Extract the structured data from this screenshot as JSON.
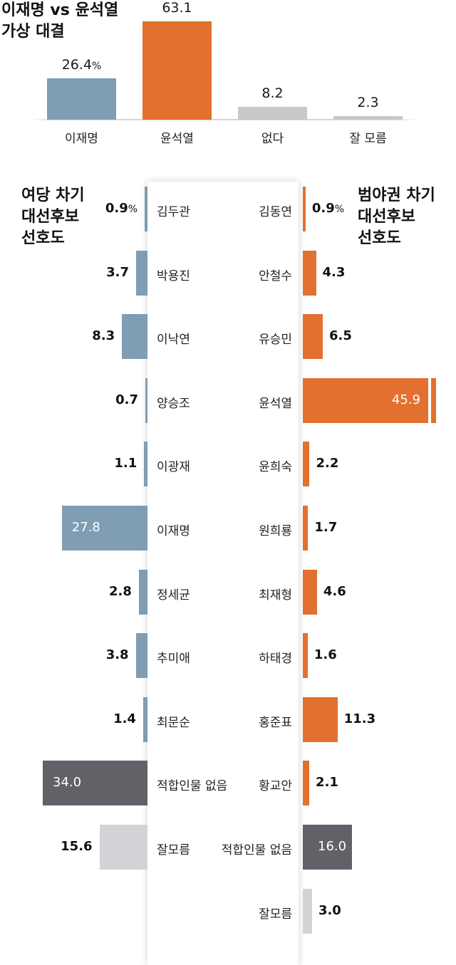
{
  "chart_data": [
    {
      "type": "bar",
      "title": "이재명 vs 윤석열\n가상 대결",
      "categories": [
        "이재명",
        "윤석열",
        "없다",
        "잘 모름"
      ],
      "values": [
        26.4,
        63.1,
        8.2,
        2.3
      ],
      "value_labels": [
        "26.4",
        "63.1",
        "8.2",
        "2.3"
      ],
      "unit": "%",
      "colors": [
        "#7f9db3",
        "#e2702e",
        "#c9c9cb",
        "#c9c9cb"
      ]
    },
    {
      "type": "bar",
      "orientation": "horizontal",
      "title": "여당 차기\n대선후보\n선호도",
      "categories": [
        "김두관",
        "박용진",
        "이낙연",
        "양승조",
        "이광재",
        "이재명",
        "정세균",
        "추미애",
        "최문순",
        "적합인물 없음",
        "잘모름"
      ],
      "values": [
        0.9,
        3.7,
        8.3,
        0.7,
        1.1,
        27.8,
        2.8,
        3.8,
        1.4,
        34.0,
        15.6
      ],
      "value_labels": [
        "0.9",
        "3.7",
        "8.3",
        "0.7",
        "1.1",
        "27.8",
        "2.8",
        "3.8",
        "1.4",
        "34.0",
        "15.6"
      ],
      "unit": "%",
      "colors": [
        "#7f9db3",
        "#7f9db3",
        "#7f9db3",
        "#7f9db3",
        "#7f9db3",
        "#7f9db3",
        "#7f9db3",
        "#7f9db3",
        "#7f9db3",
        "#616268",
        "#d2d3d6"
      ]
    },
    {
      "type": "bar",
      "orientation": "horizontal",
      "title": "범야권 차기\n대선후보\n선호도",
      "categories": [
        "김동연",
        "안철수",
        "유승민",
        "윤석열",
        "윤희숙",
        "원희룡",
        "최재형",
        "하태경",
        "홍준표",
        "황교안",
        "적합인물 없음",
        "잘모름"
      ],
      "values": [
        0.9,
        4.3,
        6.5,
        45.9,
        2.2,
        1.7,
        4.6,
        1.6,
        11.3,
        2.1,
        16.0,
        3.0
      ],
      "value_labels": [
        "0.9",
        "4.3",
        "6.5",
        "45.9",
        "2.2",
        "1.7",
        "4.6",
        "1.6",
        "11.3",
        "2.1",
        "16.0",
        "3.0"
      ],
      "unit": "%",
      "colors": [
        "#e2702e",
        "#e2702e",
        "#e2702e",
        "#e2702e",
        "#e2702e",
        "#e2702e",
        "#e2702e",
        "#e2702e",
        "#e2702e",
        "#e2702e",
        "#616268",
        "#d2d3d6"
      ]
    }
  ]
}
